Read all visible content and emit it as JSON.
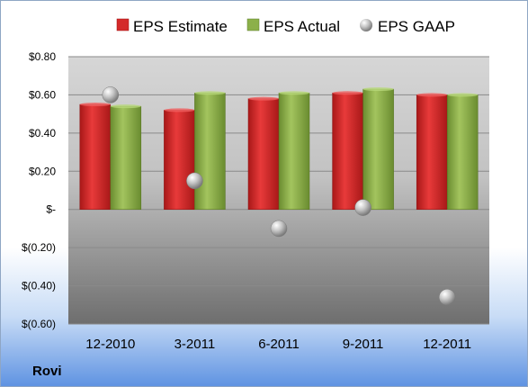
{
  "chart_data": {
    "type": "bar",
    "categories": [
      "12-2010",
      "3-2011",
      "6-2011",
      "9-2011",
      "12-2011"
    ],
    "series": [
      {
        "name": "EPS Estimate",
        "kind": "bar",
        "color": "#d42a2a",
        "values": [
          0.55,
          0.52,
          0.58,
          0.61,
          0.6
        ]
      },
      {
        "name": "EPS Actual",
        "kind": "bar",
        "color": "#8cb04a",
        "values": [
          0.54,
          0.61,
          0.61,
          0.63,
          0.6
        ]
      },
      {
        "name": "EPS GAAP",
        "kind": "scatter",
        "color": "#a0a0a0",
        "values": [
          0.6,
          0.15,
          -0.1,
          0.01,
          -0.46
        ]
      }
    ],
    "yticks": [
      {
        "value": 0.8,
        "label": "$0.80"
      },
      {
        "value": 0.6,
        "label": "$0.60"
      },
      {
        "value": 0.4,
        "label": "$0.40"
      },
      {
        "value": 0.2,
        "label": "$0.20"
      },
      {
        "value": 0.0,
        "label": "$-"
      },
      {
        "value": -0.2,
        "label": "$(0.20)"
      },
      {
        "value": -0.4,
        "label": "$(0.40)"
      },
      {
        "value": -0.6,
        "label": "$(0.60)"
      }
    ],
    "ylim": [
      -0.6,
      0.8
    ],
    "grid": true,
    "legend_position": "top",
    "title": "",
    "xlabel": "",
    "ylabel": ""
  },
  "company_label": "Rovi"
}
